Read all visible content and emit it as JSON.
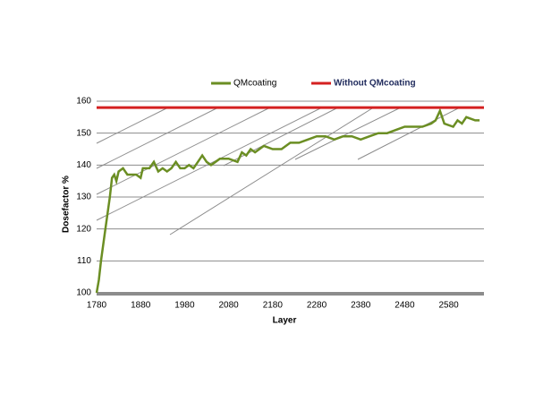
{
  "chart_data": {
    "type": "line",
    "x_label": "Layer",
    "y_label": "Dosefactor %",
    "xlim": [
      1780,
      2660
    ],
    "xticks": [
      1780,
      1880,
      1980,
      2080,
      2180,
      2280,
      2380,
      2480,
      2580
    ],
    "ylim": [
      100,
      160
    ],
    "yticks": [
      100,
      110,
      120,
      130,
      140,
      150,
      160
    ],
    "grid": true,
    "legend": "top",
    "series": [
      {
        "name": "QMcoating",
        "color": "#6b8e23",
        "x": [
          1780,
          1785,
          1790,
          1800,
          1810,
          1815,
          1820,
          1825,
          1830,
          1840,
          1850,
          1870,
          1880,
          1885,
          1900,
          1910,
          1920,
          1930,
          1940,
          1950,
          1960,
          1970,
          1980,
          1990,
          2000,
          2010,
          2020,
          2030,
          2040,
          2050,
          2060,
          2080,
          2100,
          2110,
          2120,
          2130,
          2140,
          2160,
          2180,
          2200,
          2220,
          2240,
          2260,
          2280,
          2300,
          2320,
          2340,
          2360,
          2380,
          2400,
          2420,
          2440,
          2460,
          2480,
          2500,
          2520,
          2540,
          2550,
          2560,
          2570,
          2590,
          2600,
          2610,
          2620,
          2640,
          2650
        ],
        "values": [
          100,
          104,
          110,
          120,
          130,
          136,
          137,
          135,
          138,
          139,
          137,
          137,
          136,
          139,
          139,
          141,
          138,
          139,
          138,
          139,
          141,
          139,
          139,
          140,
          139,
          141,
          143,
          141,
          140,
          141,
          142,
          142,
          141,
          144,
          143,
          145,
          144,
          146,
          145,
          145,
          147,
          147,
          148,
          149,
          149,
          148,
          149,
          149,
          148,
          149,
          150,
          150,
          151,
          152,
          152,
          152,
          153,
          154,
          157,
          153,
          152,
          154,
          153,
          155,
          154,
          154
        ]
      },
      {
        "name": "Without QMcoating",
        "color": "#d42020",
        "x": [
          1780,
          2660
        ],
        "values": [
          158,
          158
        ]
      }
    ]
  }
}
